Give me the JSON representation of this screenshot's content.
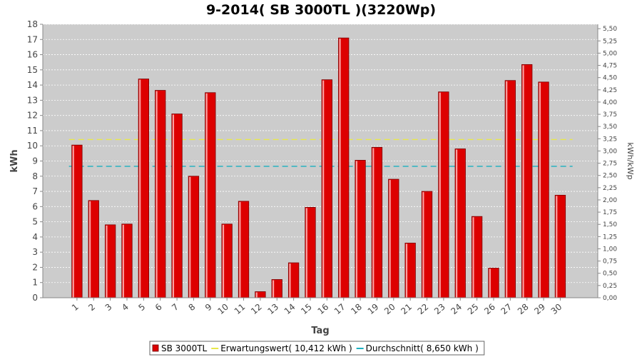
{
  "chart_data": {
    "type": "bar",
    "title": "9-2014( SB 3000TL )(3220Wp)",
    "xlabel": "Tag",
    "ylabel": "kWh",
    "y2label": "kWh/kWp",
    "ylim": [
      0,
      18
    ],
    "y2lim": [
      0,
      5.59
    ],
    "grid": true,
    "legend_position": "bottom",
    "categories": [
      "1",
      "2",
      "3",
      "4",
      "5",
      "6",
      "7",
      "8",
      "9",
      "10",
      "11",
      "12",
      "13",
      "14",
      "15",
      "16",
      "17",
      "18",
      "19",
      "20",
      "21",
      "22",
      "23",
      "24",
      "25",
      "26",
      "27",
      "28",
      "29",
      "30"
    ],
    "y_ticks": [
      "0",
      "1",
      "2",
      "3",
      "4",
      "5",
      "6",
      "7",
      "8",
      "9",
      "10",
      "11",
      "12",
      "13",
      "14",
      "15",
      "16",
      "17",
      "18"
    ],
    "y2_ticks": [
      "0,00",
      "0,25",
      "0,50",
      "0,75",
      "1,00",
      "1,25",
      "1,50",
      "1,75",
      "2,00",
      "2,25",
      "2,50",
      "2,75",
      "3,00",
      "3,25",
      "3,50",
      "3,75",
      "4,00",
      "4,25",
      "4,50",
      "4,75",
      "5,00",
      "5,25",
      "5,50"
    ],
    "series": [
      {
        "name": "SB 3000TL",
        "color": "#dd0000",
        "values": [
          10.05,
          6.4,
          4.8,
          4.85,
          14.4,
          13.65,
          12.1,
          8.0,
          13.5,
          4.85,
          6.35,
          0.4,
          1.2,
          2.3,
          5.95,
          14.35,
          17.1,
          9.05,
          9.9,
          7.8,
          3.6,
          7.0,
          13.55,
          9.8,
          5.35,
          1.95,
          14.3,
          15.35,
          14.2,
          6.75
        ]
      }
    ],
    "reference_lines": [
      {
        "label": "Erwartungswert( 10,412 kWh )",
        "value": 10.412,
        "color": "#e8e84a"
      },
      {
        "label": "Durchschnitt( 8,650 kWh )",
        "value": 8.65,
        "color": "#1ab0c0"
      }
    ],
    "plot_background": "#cccccc"
  }
}
